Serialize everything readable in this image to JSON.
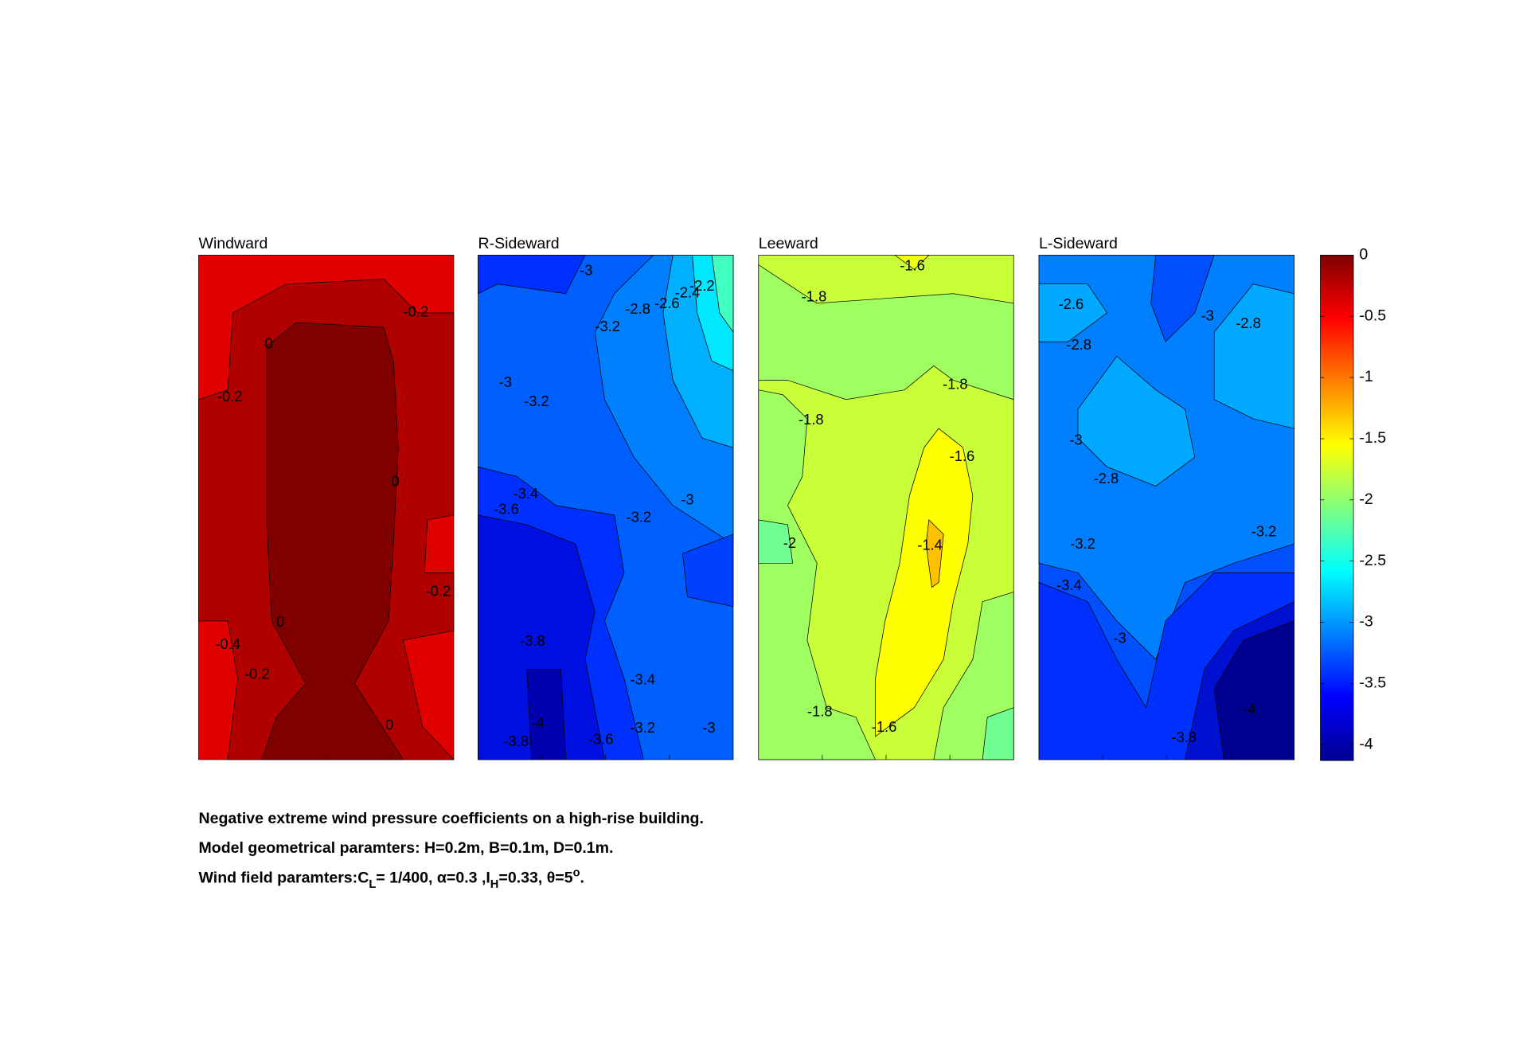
{
  "chart_data": [
    {
      "type": "contour",
      "title": "Windward",
      "contour_labels": [
        -0.2,
        0,
        -0.2,
        0,
        -0.2,
        0,
        -0.4,
        -0.2,
        0
      ]
    },
    {
      "type": "contour",
      "title": "R-Sideward",
      "contour_labels": [
        -3,
        -2.8,
        -2.6,
        -2.4,
        -2.2,
        -3.2,
        -3,
        -3.2,
        -3.4,
        -3.6,
        -3,
        -3.2,
        -3.8,
        -3.4,
        -4,
        -3.2,
        -3,
        -3.8,
        -3.6
      ]
    },
    {
      "type": "contour",
      "title": "Leeward",
      "contour_labels": [
        -1.6,
        -1.8,
        -1.8,
        -1.8,
        -1.6,
        -2,
        -1.4,
        -1.8,
        -1.6
      ]
    },
    {
      "type": "contour",
      "title": "L-Sideward",
      "contour_labels": [
        -2.6,
        -3,
        -2.8,
        -2.8,
        -3,
        -2.8,
        -3.2,
        -3.2,
        -3.4,
        -3,
        -4,
        -3.8
      ]
    },
    {
      "type": "colorbar",
      "ylim": [
        -4.13,
        0
      ],
      "yticks": [
        0,
        -0.5,
        -1,
        -1.5,
        -2,
        -2.5,
        -3,
        -3.5,
        -4
      ]
    }
  ],
  "caption": {
    "lines": [
      [
        "Negative extreme wind pressure coefficients on a high-rise building."
      ],
      [
        "Model geometrical paramters: H=0.2m, B=0.1m, D=0.1m."
      ],
      [
        "Wind field paramters:C",
        "L",
        "= 1/400, α=0.3 ,I",
        "H",
        "=0.33, θ=5",
        "o",
        "."
      ]
    ]
  }
}
